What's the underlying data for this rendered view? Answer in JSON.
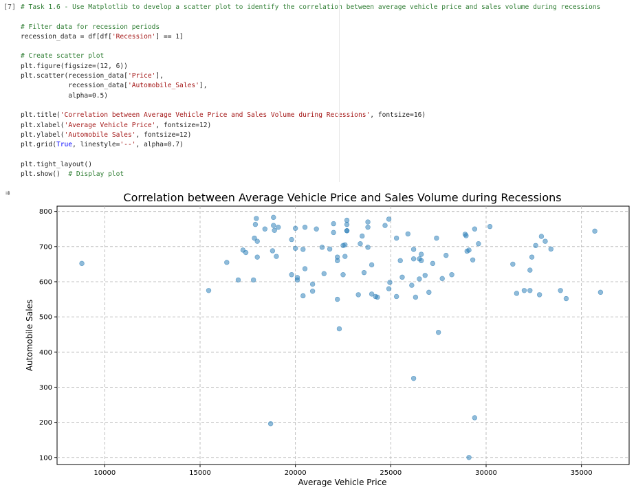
{
  "cell": {
    "prompt": "[7]",
    "code_lines": [
      {
        "parts": [
          {
            "t": "c",
            "v": "# Task 1.6 - Use Matplotlib to develop a scatter plot to identify the correlation between average vehicle price and sales volume during recessions"
          }
        ]
      },
      {
        "parts": []
      },
      {
        "parts": [
          {
            "t": "c",
            "v": "# Filter data for recession periods"
          }
        ]
      },
      {
        "parts": [
          {
            "t": "n",
            "v": "recession_data = df[df["
          },
          {
            "t": "s",
            "v": "'Recession'"
          },
          {
            "t": "n",
            "v": "] == 1]"
          }
        ]
      },
      {
        "parts": []
      },
      {
        "parts": [
          {
            "t": "c",
            "v": "# Create scatter plot"
          }
        ]
      },
      {
        "parts": [
          {
            "t": "n",
            "v": "plt.figure(figsize=(12, 6))"
          }
        ]
      },
      {
        "parts": [
          {
            "t": "n",
            "v": "plt.scatter(recession_data["
          },
          {
            "t": "s",
            "v": "'Price'"
          },
          {
            "t": "n",
            "v": "],"
          }
        ]
      },
      {
        "parts": [
          {
            "t": "n",
            "v": "            recession_data["
          },
          {
            "t": "s",
            "v": "'Automobile_Sales'"
          },
          {
            "t": "n",
            "v": "],"
          }
        ]
      },
      {
        "parts": [
          {
            "t": "n",
            "v": "            alpha=0.5)"
          }
        ]
      },
      {
        "parts": []
      },
      {
        "parts": [
          {
            "t": "n",
            "v": "plt.title("
          },
          {
            "t": "s",
            "v": "'Correlation between Average Vehicle Price and Sales Volume during Recessions'"
          },
          {
            "t": "n",
            "v": ", fontsize=16)"
          }
        ]
      },
      {
        "parts": [
          {
            "t": "n",
            "v": "plt.xlabel("
          },
          {
            "t": "s",
            "v": "'Average Vehicle Price'"
          },
          {
            "t": "n",
            "v": ", fontsize=12)"
          }
        ]
      },
      {
        "parts": [
          {
            "t": "n",
            "v": "plt.ylabel("
          },
          {
            "t": "s",
            "v": "'Automobile Sales'"
          },
          {
            "t": "n",
            "v": ", fontsize=12)"
          }
        ]
      },
      {
        "parts": [
          {
            "t": "n",
            "v": "plt.grid("
          },
          {
            "t": "k",
            "v": "True"
          },
          {
            "t": "n",
            "v": ", linestyle="
          },
          {
            "t": "s",
            "v": "'--'"
          },
          {
            "t": "n",
            "v": ", alpha=0.7)"
          }
        ]
      },
      {
        "parts": []
      },
      {
        "parts": [
          {
            "t": "n",
            "v": "plt.tight_layout()"
          }
        ]
      },
      {
        "parts": [
          {
            "t": "n",
            "v": "plt.show()  "
          },
          {
            "t": "c",
            "v": "# Display plot"
          }
        ]
      }
    ]
  },
  "output_icon": "output-toggle-icon",
  "chart_data": {
    "type": "scatter",
    "title": "Correlation between Average Vehicle Price and Sales Volume during Recessions",
    "xlabel": "Average Vehicle Price",
    "ylabel": "Automobile Sales",
    "xlim": [
      7500,
      37500
    ],
    "ylim": [
      80,
      815
    ],
    "xticks": [
      10000,
      15000,
      20000,
      25000,
      30000,
      35000
    ],
    "yticks": [
      100,
      200,
      300,
      400,
      500,
      600,
      700,
      800
    ],
    "grid": true,
    "point_color": "#1f77b4",
    "point_alpha": 0.5,
    "points": [
      [
        8800,
        652
      ],
      [
        15450,
        575
      ],
      [
        16400,
        655
      ],
      [
        17000,
        605
      ],
      [
        17250,
        690
      ],
      [
        17400,
        683
      ],
      [
        17800,
        605
      ],
      [
        17850,
        724
      ],
      [
        17900,
        763
      ],
      [
        17950,
        780
      ],
      [
        18000,
        670
      ],
      [
        18000,
        715
      ],
      [
        18400,
        750
      ],
      [
        18700,
        196
      ],
      [
        18800,
        688
      ],
      [
        18850,
        783
      ],
      [
        18850,
        760
      ],
      [
        18900,
        746
      ],
      [
        19000,
        672
      ],
      [
        19100,
        755
      ],
      [
        19800,
        620
      ],
      [
        19800,
        720
      ],
      [
        20000,
        695
      ],
      [
        20000,
        752
      ],
      [
        20100,
        605
      ],
      [
        20100,
        612
      ],
      [
        20400,
        560
      ],
      [
        20400,
        692
      ],
      [
        20500,
        637
      ],
      [
        20500,
        755
      ],
      [
        20900,
        573
      ],
      [
        20900,
        593
      ],
      [
        21100,
        750
      ],
      [
        21400,
        698
      ],
      [
        21500,
        623
      ],
      [
        21800,
        693
      ],
      [
        22000,
        740
      ],
      [
        22000,
        765
      ],
      [
        22200,
        550
      ],
      [
        22200,
        660
      ],
      [
        22200,
        670
      ],
      [
        22300,
        466
      ],
      [
        22500,
        703
      ],
      [
        22500,
        620
      ],
      [
        22600,
        672
      ],
      [
        22600,
        705
      ],
      [
        22700,
        745
      ],
      [
        22700,
        775
      ],
      [
        22700,
        745
      ],
      [
        22700,
        763
      ],
      [
        23300,
        563
      ],
      [
        23400,
        708
      ],
      [
        23500,
        730
      ],
      [
        23600,
        626
      ],
      [
        23800,
        698
      ],
      [
        23800,
        755
      ],
      [
        23800,
        770
      ],
      [
        24000,
        565
      ],
      [
        24000,
        648
      ],
      [
        24200,
        558
      ],
      [
        24300,
        556
      ],
      [
        24700,
        760
      ],
      [
        24900,
        580
      ],
      [
        24900,
        778
      ],
      [
        24950,
        598
      ],
      [
        25300,
        724
      ],
      [
        25300,
        558
      ],
      [
        25500,
        660
      ],
      [
        25600,
        613
      ],
      [
        25900,
        736
      ],
      [
        26100,
        590
      ],
      [
        26200,
        325
      ],
      [
        26200,
        692
      ],
      [
        26200,
        665
      ],
      [
        26300,
        556
      ],
      [
        26500,
        665
      ],
      [
        26500,
        608
      ],
      [
        26600,
        678
      ],
      [
        26600,
        660
      ],
      [
        26800,
        618
      ],
      [
        27000,
        570
      ],
      [
        27200,
        652
      ],
      [
        27400,
        724
      ],
      [
        27500,
        456
      ],
      [
        27700,
        609
      ],
      [
        27900,
        675
      ],
      [
        28200,
        620
      ],
      [
        28900,
        735
      ],
      [
        28950,
        731
      ],
      [
        29000,
        687
      ],
      [
        29100,
        100
      ],
      [
        29100,
        690
      ],
      [
        29300,
        662
      ],
      [
        29400,
        213
      ],
      [
        29400,
        750
      ],
      [
        29600,
        708
      ],
      [
        30200,
        757
      ],
      [
        31400,
        650
      ],
      [
        31600,
        567
      ],
      [
        32000,
        575
      ],
      [
        32300,
        575
      ],
      [
        32300,
        633
      ],
      [
        32400,
        670
      ],
      [
        32600,
        703
      ],
      [
        32800,
        563
      ],
      [
        32900,
        729
      ],
      [
        33100,
        715
      ],
      [
        33400,
        693
      ],
      [
        33900,
        575
      ],
      [
        34200,
        552
      ],
      [
        35700,
        744
      ],
      [
        36000,
        570
      ]
    ]
  }
}
